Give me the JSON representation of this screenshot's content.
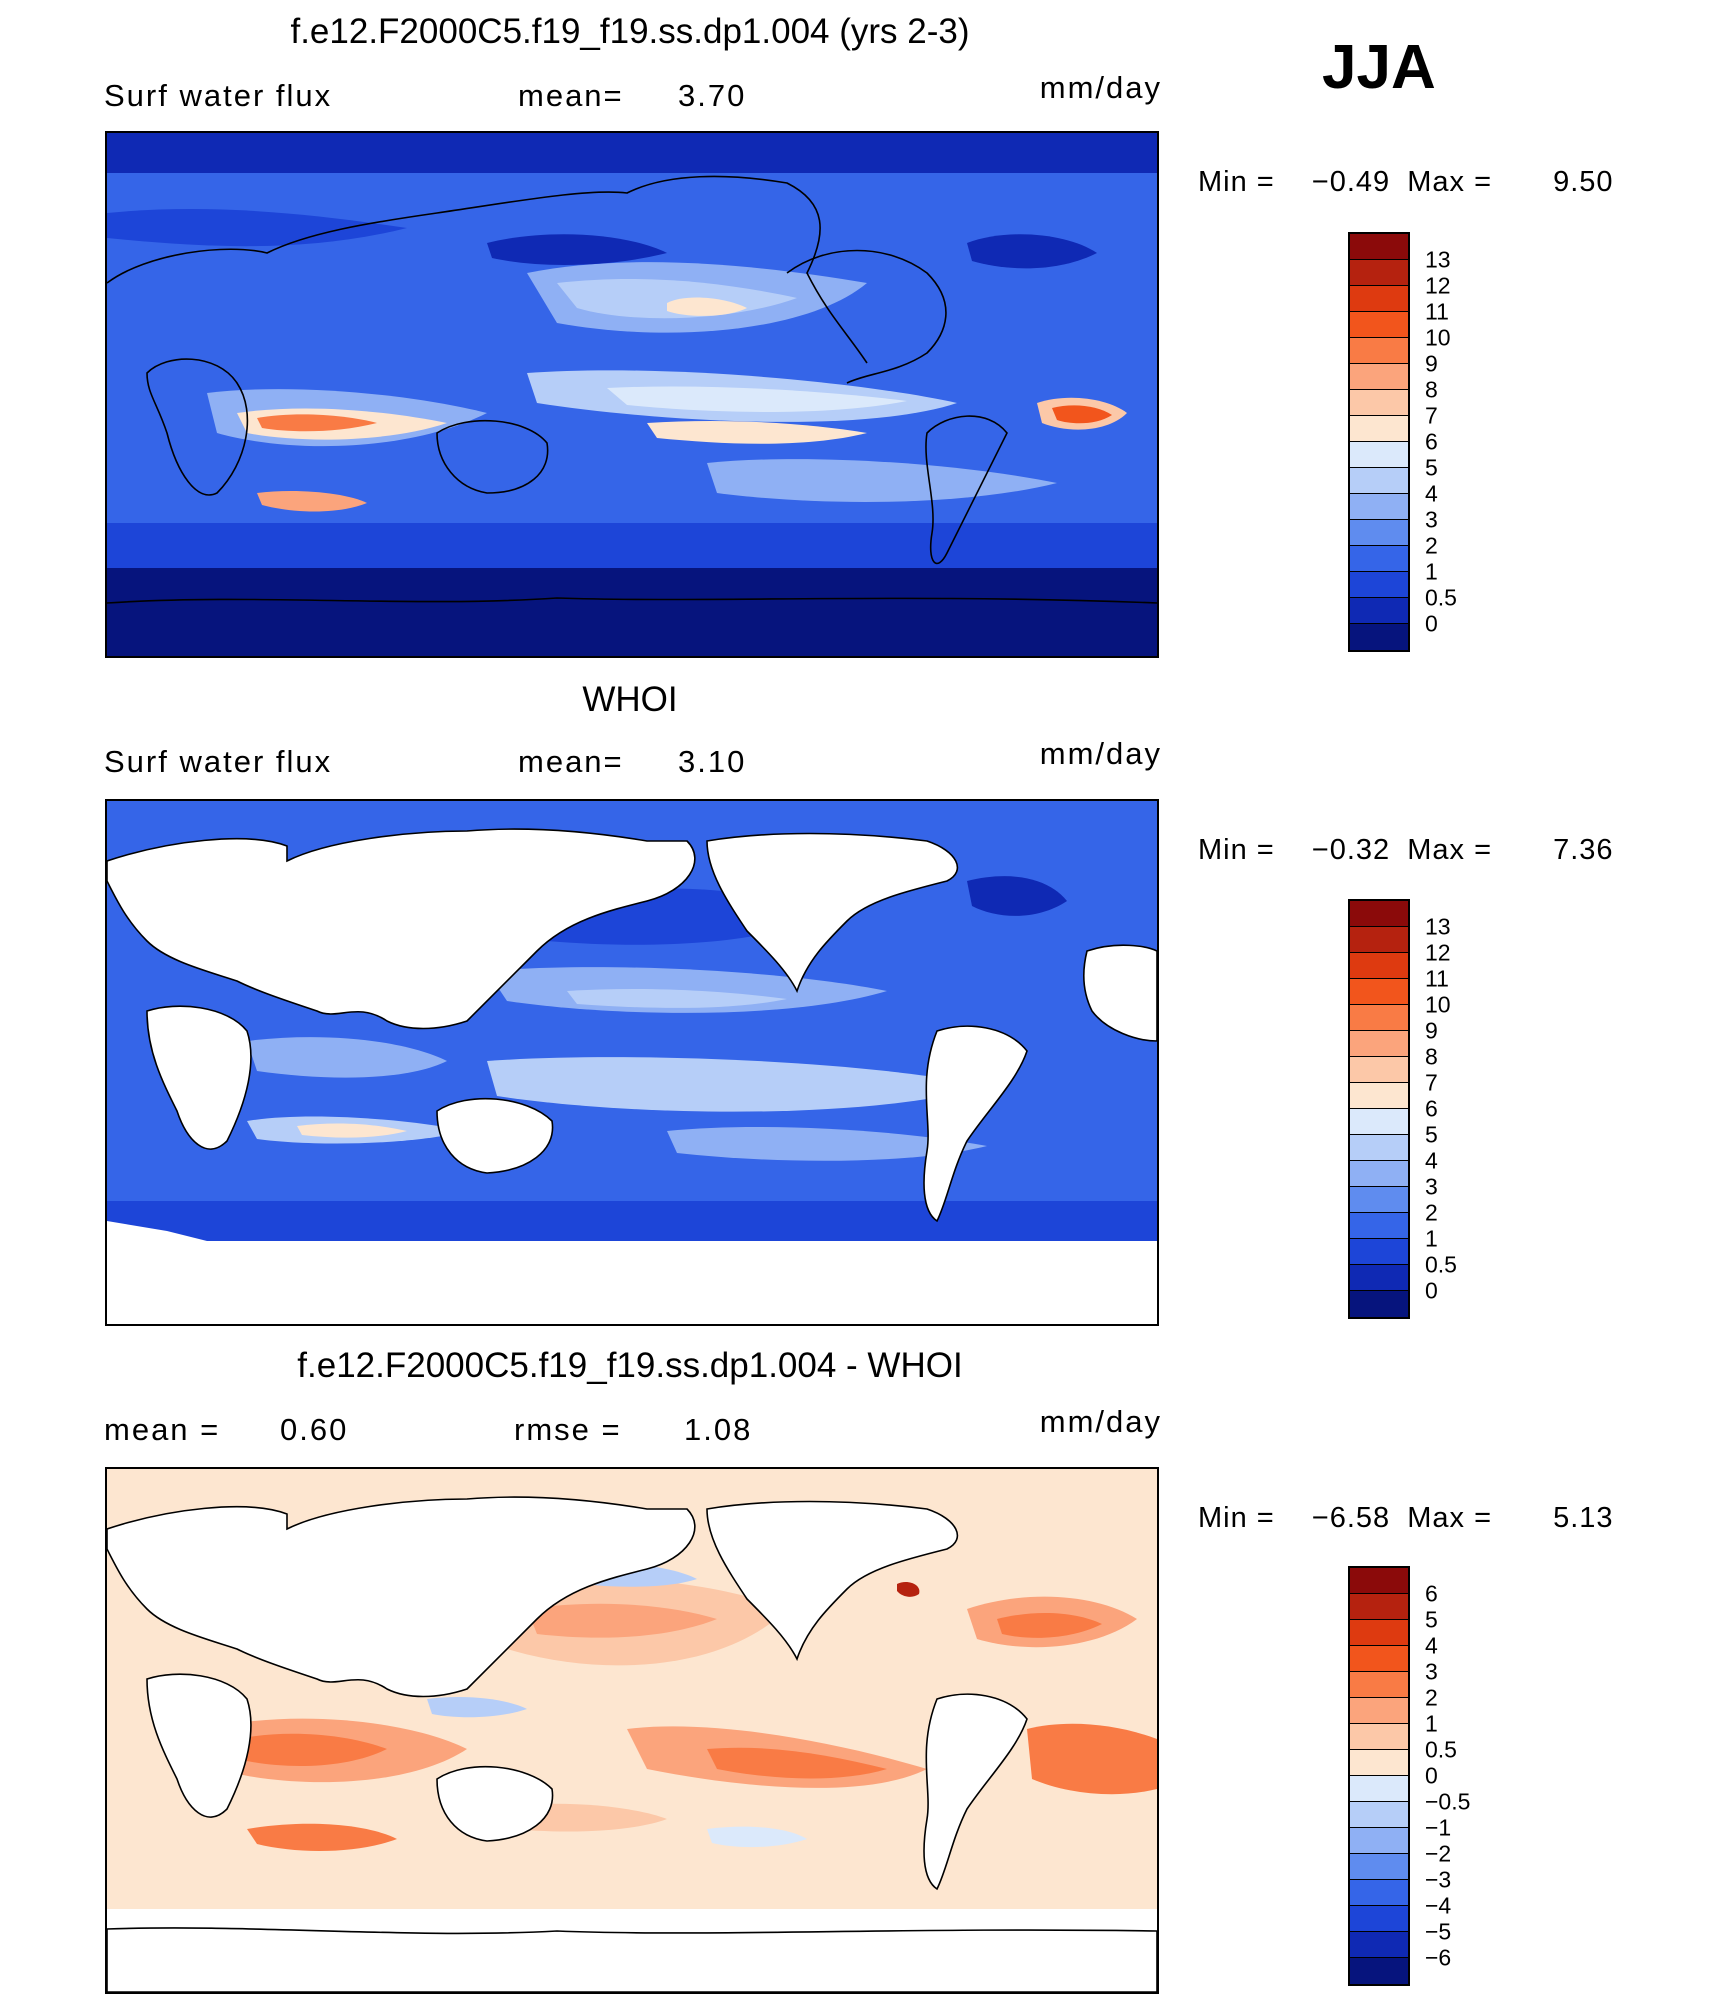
{
  "season": "JJA",
  "panels": [
    {
      "title": "f.e12.F2000C5.f19_f19.ss.dp1.004 (yrs 2-3)",
      "left_label": "Surf  water  flux",
      "mid_label": "mean=",
      "mid_value": "3.70",
      "units": "mm/day",
      "min_label": "Min  =",
      "min_value": "−0.49",
      "max_label": "Max  =",
      "max_value": "9.50",
      "colorbar": {
        "labels": [
          "13",
          "12",
          "11",
          "10",
          "9",
          "8",
          "7",
          "6",
          "5",
          "4",
          "3",
          "2",
          "1",
          "0.5",
          "0"
        ],
        "colors": [
          "#8b0a0a",
          "#b5220f",
          "#de3a10",
          "#f2551c",
          "#f97b45",
          "#fba47c",
          "#fcc8a8",
          "#fde6d0",
          "#dbe9fb",
          "#b6cef8",
          "#8fb0f4",
          "#5f8cef",
          "#3565e8",
          "#1d45d8",
          "#0f29b4",
          "#06147d"
        ]
      }
    },
    {
      "title": "WHOI",
      "left_label": "Surf  water  flux",
      "mid_label": "mean=",
      "mid_value": "3.10",
      "units": "mm/day",
      "min_label": "Min  =",
      "min_value": "−0.32",
      "max_label": "Max  =",
      "max_value": "7.36",
      "colorbar": {
        "labels": [
          "13",
          "12",
          "11",
          "10",
          "9",
          "8",
          "7",
          "6",
          "5",
          "4",
          "3",
          "2",
          "1",
          "0.5",
          "0"
        ],
        "colors": [
          "#8b0a0a",
          "#b5220f",
          "#de3a10",
          "#f2551c",
          "#f97b45",
          "#fba47c",
          "#fcc8a8",
          "#fde6d0",
          "#dbe9fb",
          "#b6cef8",
          "#8fb0f4",
          "#5f8cef",
          "#3565e8",
          "#1d45d8",
          "#0f29b4",
          "#06147d"
        ]
      }
    },
    {
      "title": "f.e12.F2000C5.f19_f19.ss.dp1.004 - WHOI",
      "left_label": "mean  =",
      "left_value": "0.60",
      "mid_label": "rmse  =",
      "mid_value": "1.08",
      "units": "mm/day",
      "min_label": "Min  =",
      "min_value": "−6.58",
      "max_label": "Max  =",
      "max_value": "5.13",
      "colorbar": {
        "labels": [
          "6",
          "5",
          "4",
          "3",
          "2",
          "1",
          "0.5",
          "0",
          "−0.5",
          "−1",
          "−2",
          "−3",
          "−4",
          "−5",
          "−6"
        ],
        "colors": [
          "#8b0a0a",
          "#b5220f",
          "#de3a10",
          "#f2551c",
          "#f97b45",
          "#fba47c",
          "#fcc8a8",
          "#fde6d0",
          "#dbe9fb",
          "#b6cef8",
          "#8fb0f4",
          "#5f8cef",
          "#3565e8",
          "#1d45d8",
          "#0f29b4",
          "#06147d"
        ]
      }
    }
  ]
}
